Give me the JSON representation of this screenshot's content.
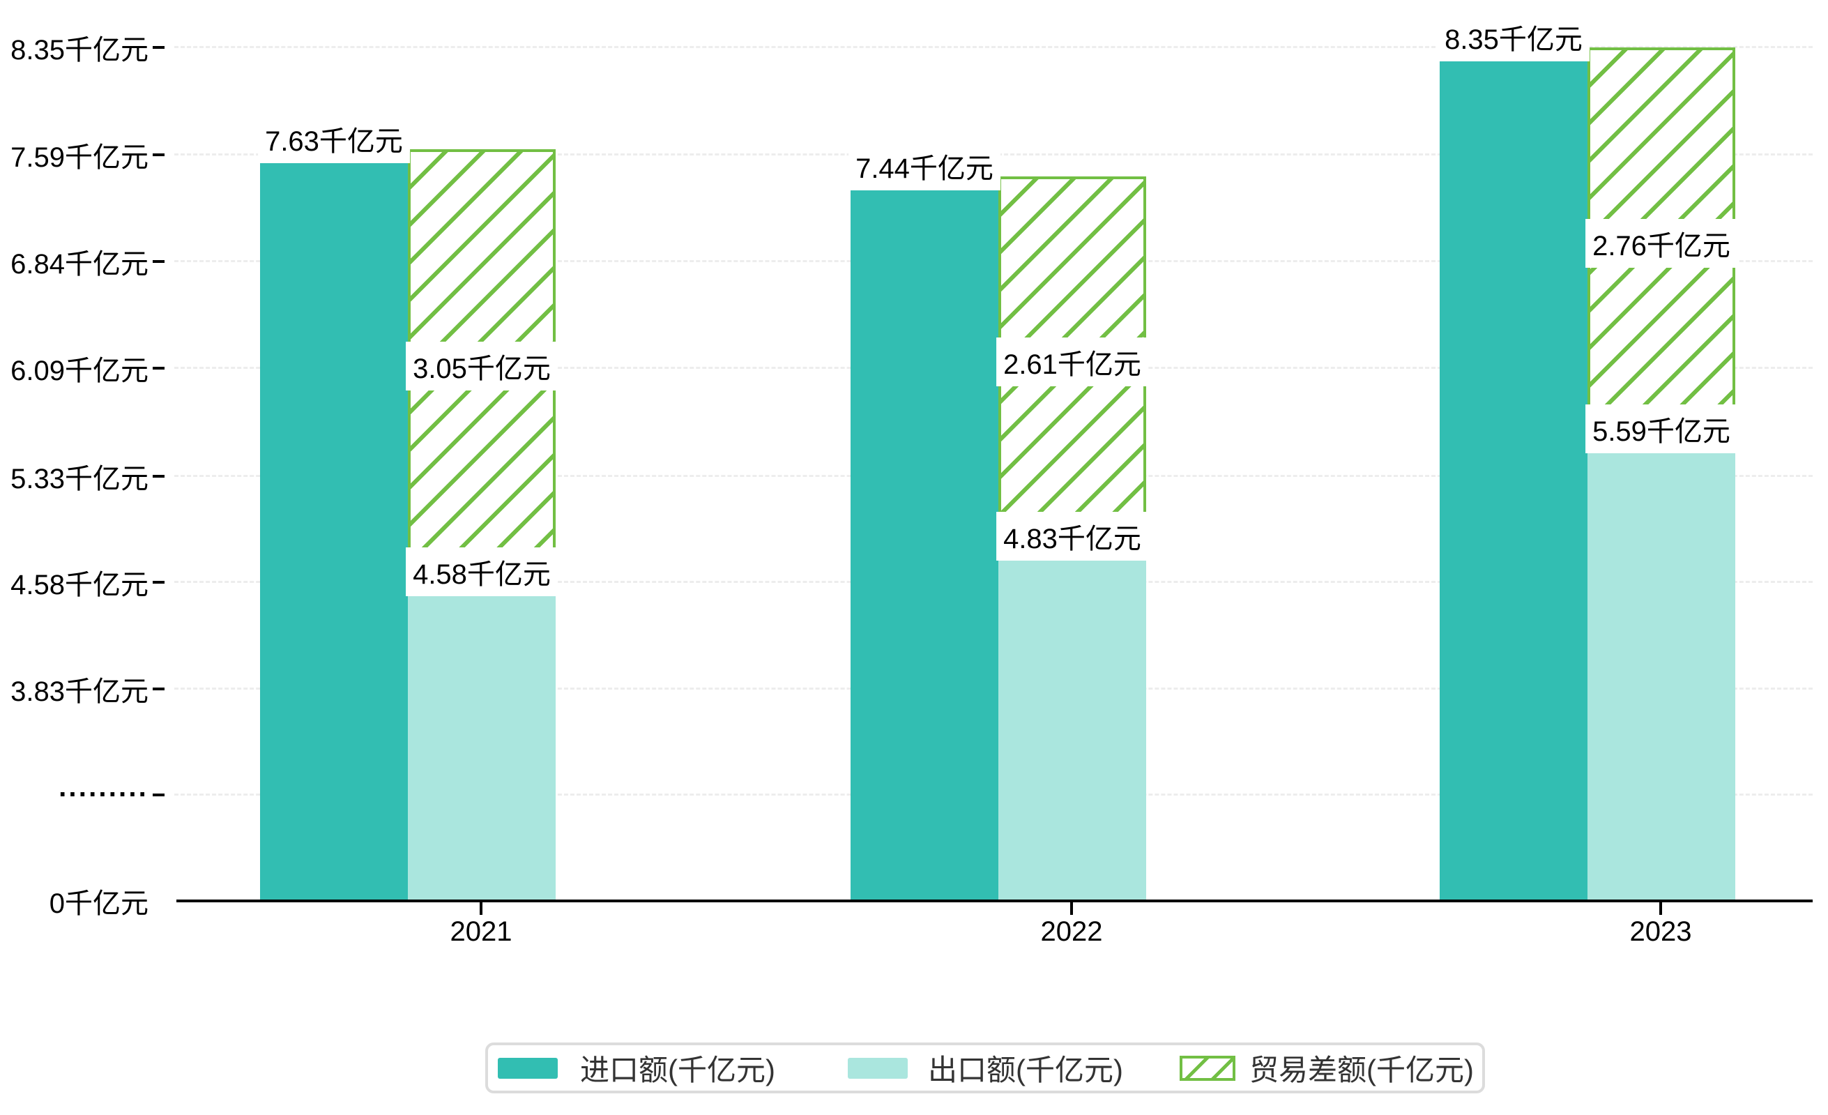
{
  "chart_data": {
    "type": "bar",
    "title": "",
    "categories": [
      "2021",
      "2022",
      "2023"
    ],
    "series": [
      {
        "name": "进口额(千亿元)",
        "role": "import",
        "style": "solid",
        "color": "#32beb2",
        "values": [
          7.63,
          7.44,
          8.35
        ],
        "data_labels": [
          "7.63千亿元",
          "7.44千亿元",
          "8.35千亿元"
        ]
      },
      {
        "name": "出口额(千亿元)",
        "role": "export",
        "style": "solid",
        "color": "#aae6de",
        "values": [
          4.58,
          4.83,
          5.59
        ],
        "data_labels": [
          "4.58千亿元",
          "4.83千亿元",
          "5.59千亿元"
        ]
      },
      {
        "name": "贸易差额(千亿元)",
        "role": "difference",
        "style": "hatched",
        "color": "#72bf44",
        "stacked_on": "出口额(千亿元)",
        "values": [
          3.05,
          2.61,
          2.76
        ],
        "data_labels": [
          "3.05千亿元",
          "2.61千亿元",
          "2.76千亿元"
        ]
      }
    ],
    "y_axis": {
      "unit": "千亿元",
      "axis_break_between": [
        0,
        3.83
      ],
      "ticks": [
        {
          "label": "8.35千亿元",
          "value": 8.35
        },
        {
          "label": "7.59千亿元",
          "value": 7.59
        },
        {
          "label": "6.84千亿元",
          "value": 6.84
        },
        {
          "label": "6.09千亿元",
          "value": 6.09
        },
        {
          "label": "5.33千亿元",
          "value": 5.33
        },
        {
          "label": "4.58千亿元",
          "value": 4.58
        },
        {
          "label": "3.83千亿元",
          "value": 3.83
        },
        {
          "label": "·········",
          "value": null,
          "axis_break": true
        },
        {
          "label": "0千亿元",
          "value": 0
        }
      ]
    },
    "legend": {
      "position": "bottom",
      "items": [
        "进口额(千亿元)",
        "出口额(千亿元)",
        "贸易差额(千亿元)"
      ]
    },
    "grid": true
  },
  "colors": {
    "import": "#32beb2",
    "export": "#aae6de",
    "difference": "#72bf44",
    "axis": "#000000",
    "gridline": "#ededed",
    "value_label_text": "#000000",
    "value_label_bg": "#ffffff",
    "legend_border": "#dcdcdc",
    "legend_text": "#333333",
    "background": "#ffffff"
  }
}
